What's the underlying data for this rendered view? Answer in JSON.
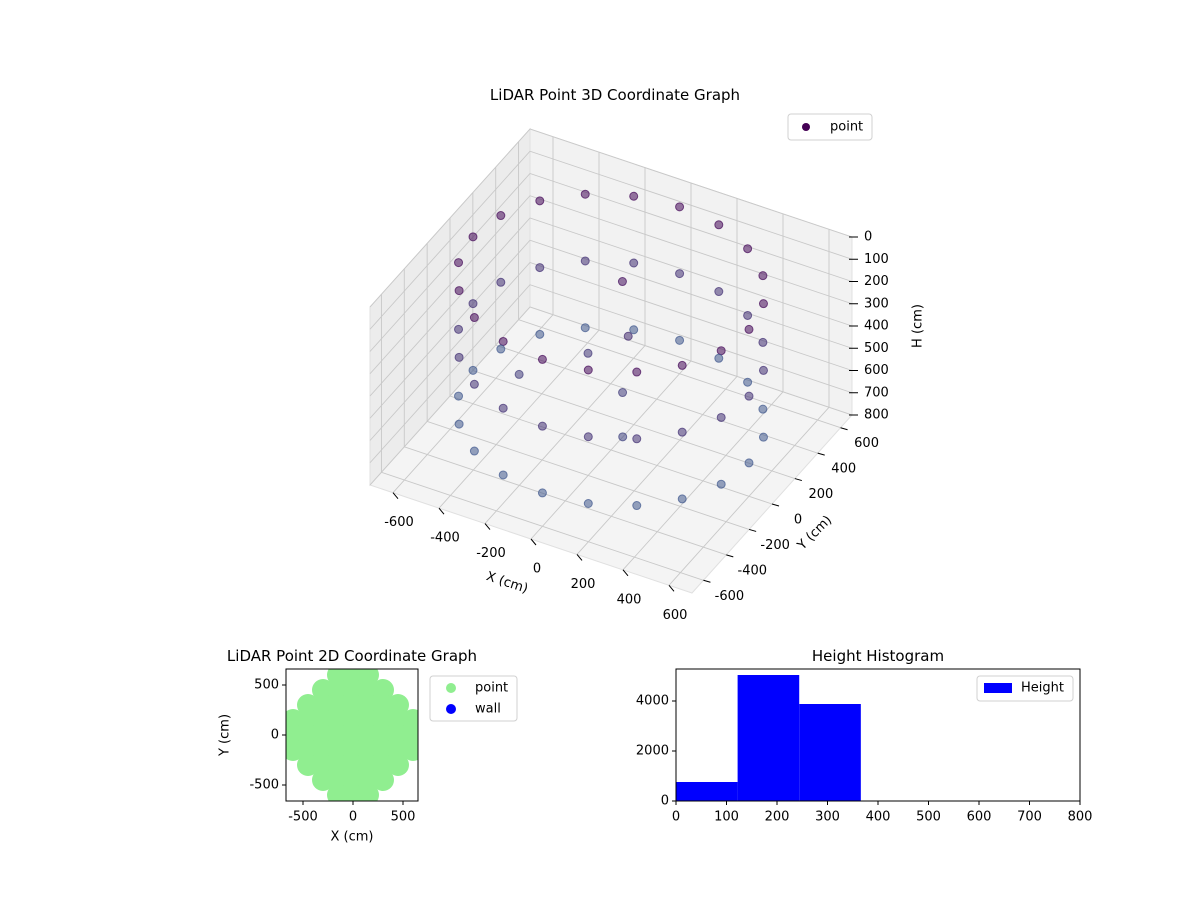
{
  "chart_data": [
    {
      "type": "scatter3d",
      "title": "LiDAR Point 3D Coordinate Graph",
      "x_label": "X (cm)",
      "y_label": "Y (cm)",
      "z_label": "H (cm)",
      "xlim": [
        -700,
        700
      ],
      "ylim": [
        -700,
        700
      ],
      "zlim": [
        800,
        0
      ],
      "xticks": [
        -600,
        -400,
        -200,
        0,
        200,
        400,
        600
      ],
      "yticks": [
        -600,
        -400,
        -200,
        0,
        200,
        400,
        600
      ],
      "zticks": [
        0,
        100,
        200,
        300,
        400,
        500,
        600,
        700,
        800
      ],
      "grid": true,
      "legend": "upper right",
      "series": [
        {
          "name": "point",
          "color": "#440154",
          "colormap": [
            "#440154",
            "#3e6b9a"
          ],
          "x": [
            600,
            571,
            485,
            353,
            185,
            0,
            -185,
            -353,
            -485,
            -571,
            -600,
            -571,
            -485,
            -353,
            -185,
            0,
            185,
            353,
            485,
            571,
            600,
            571,
            485,
            353,
            185,
            0,
            -185,
            -353,
            -485,
            -571,
            -600,
            -571,
            -485,
            -353,
            -185,
            0,
            185,
            353,
            485,
            571,
            600,
            571,
            485,
            353,
            185,
            0,
            -185,
            -353,
            -485,
            -571,
            -600,
            -571,
            -485,
            -353,
            -185,
            0,
            185,
            353,
            485,
            571,
            0,
            50,
            -100,
            100,
            200,
            -300
          ],
          "y": [
            0,
            185,
            353,
            485,
            571,
            600,
            571,
            485,
            353,
            185,
            0,
            -185,
            -353,
            -485,
            -571,
            -600,
            -571,
            -485,
            -353,
            -185,
            0,
            185,
            353,
            485,
            571,
            600,
            571,
            485,
            353,
            185,
            0,
            -185,
            -353,
            -485,
            -571,
            -600,
            -571,
            -485,
            -353,
            -185,
            0,
            185,
            353,
            485,
            571,
            600,
            571,
            485,
            353,
            185,
            0,
            -185,
            -353,
            -485,
            -571,
            -600,
            -571,
            -485,
            -353,
            -185,
            100,
            50,
            0,
            -100,
            -300,
            -200
          ],
          "z": [
            50,
            50,
            50,
            50,
            50,
            50,
            50,
            50,
            50,
            50,
            50,
            50,
            50,
            50,
            50,
            50,
            50,
            50,
            50,
            50,
            350,
            350,
            350,
            350,
            350,
            350,
            350,
            350,
            350,
            350,
            350,
            350,
            350,
            350,
            350,
            350,
            350,
            350,
            350,
            350,
            650,
            650,
            650,
            650,
            650,
            650,
            650,
            650,
            650,
            650,
            650,
            650,
            650,
            650,
            650,
            650,
            650,
            650,
            650,
            650,
            100,
            300,
            400,
            450,
            500,
            450
          ]
        }
      ]
    },
    {
      "type": "scatter",
      "title": "LiDAR Point 2D Coordinate Graph",
      "x_label": "X (cm)",
      "y_label": "Y (cm)",
      "xlim": [
        -670,
        650
      ],
      "ylim": [
        -660,
        660
      ],
      "xticks": [
        -500,
        0,
        500
      ],
      "yticks": [
        -500,
        0,
        500
      ],
      "legend": "outside right",
      "series": [
        {
          "name": "point",
          "color": "#90ee90",
          "x": [
            -150,
            0,
            150,
            -300,
            -150,
            0,
            150,
            300,
            -450,
            -300,
            -150,
            0,
            150,
            300,
            450,
            -600,
            -450,
            -300,
            -150,
            0,
            150,
            300,
            450,
            600,
            -600,
            -450,
            -300,
            -150,
            0,
            150,
            300,
            450,
            600,
            -600,
            -450,
            -300,
            -150,
            0,
            150,
            300,
            450,
            600,
            -450,
            -300,
            -150,
            0,
            150,
            300,
            450,
            -300,
            -150,
            0,
            150,
            300,
            -150,
            0,
            150
          ],
          "y": [
            600,
            600,
            600,
            450,
            450,
            450,
            450,
            450,
            300,
            300,
            300,
            300,
            300,
            300,
            300,
            150,
            150,
            150,
            150,
            150,
            150,
            150,
            150,
            150,
            0,
            0,
            0,
            0,
            0,
            0,
            0,
            0,
            0,
            -150,
            -150,
            -150,
            -150,
            -150,
            -150,
            -150,
            -150,
            -150,
            -300,
            -300,
            -300,
            -300,
            -300,
            -300,
            -300,
            -450,
            -450,
            -450,
            -450,
            -450,
            -600,
            -600,
            -600
          ]
        },
        {
          "name": "wall",
          "color": "#0000ff",
          "x": [],
          "y": []
        }
      ]
    },
    {
      "type": "histogram",
      "title": "Height Histogram",
      "name": "Height",
      "color": "#0000ff",
      "bins": [
        0,
        122,
        244,
        366
      ],
      "counts": [
        760,
        5040,
        3880
      ],
      "xlim": [
        0,
        800
      ],
      "ylim": [
        0,
        5280
      ],
      "xticks": [
        0,
        100,
        200,
        300,
        400,
        500,
        600,
        700,
        800
      ],
      "yticks": [
        0,
        2000,
        4000
      ],
      "legend": "upper right"
    }
  ]
}
